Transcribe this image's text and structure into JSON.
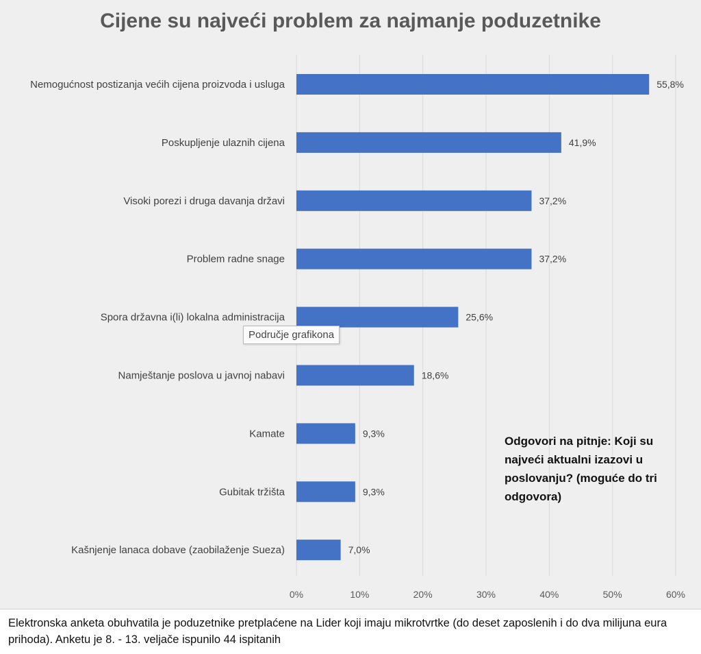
{
  "chart_data": {
    "type": "bar",
    "orientation": "horizontal",
    "title": "Cijene su najveći problem za najmanje poduzetnike",
    "categories": [
      "Nemogućnost postizanja većih cijena proizvoda i usluga",
      "Poskupljenje ulaznih cijena",
      "Visoki porezi i druga davanja državi",
      "Problem radne snage",
      "Spora državna i(li) lokalna administracija",
      "Namještanje poslova u javnoj nabavi",
      "Kamate",
      "Gubitak tržišta",
      "Kašnjenje lanaca dobave (zaobilaženje Sueza)"
    ],
    "values": [
      55.8,
      41.9,
      37.2,
      37.2,
      25.6,
      18.6,
      9.3,
      9.3,
      7.0
    ],
    "value_labels": [
      "55,8%",
      "41,9%",
      "37,2%",
      "37,2%",
      "25,6%",
      "18,6%",
      "9,3%",
      "9,3%",
      "7,0%"
    ],
    "xlim": [
      0,
      60
    ],
    "xticks": [
      0,
      10,
      20,
      30,
      40,
      50,
      60
    ],
    "xtick_labels": [
      "0%",
      "10%",
      "20%",
      "30%",
      "40%",
      "50%",
      "60%"
    ],
    "grid": true,
    "bar_color": "#4472c4",
    "xlabel": "",
    "ylabel": ""
  },
  "annotation": "Odgovori na pitnje: Koji su najveći aktualni izazovi u poslovanju? (moguće do tri odgovora)",
  "tooltip": "Područje grafikona",
  "footer": "Elektronska anketa  obuhvatila je poduzetnike pretplaćene na Lider koji imaju mikrotvrtke (do deset zaposlenih i do dva milijuna eura prihoda). Anketu je 8. - 13. veljače ispunilo 44 ispitanih"
}
